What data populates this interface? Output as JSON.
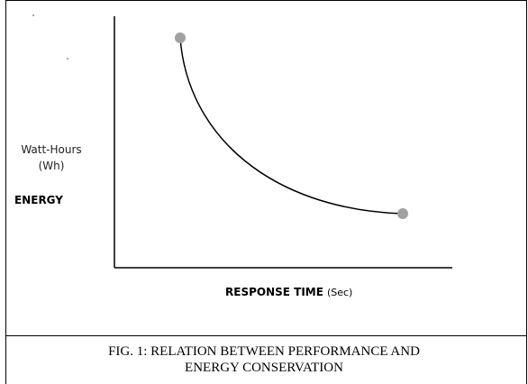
{
  "y_label": {
    "unit_line1": "Watt-Hours",
    "unit_line2": "(Wh)",
    "name": "ENERGY"
  },
  "x_label": {
    "name": "RESPONSE TIME",
    "unit": "(Sec)"
  },
  "caption": {
    "line1": "FIG. 1: RELATION BETWEEN PERFORMANCE AND",
    "line2": "ENERGY CONSERVATION"
  }
}
